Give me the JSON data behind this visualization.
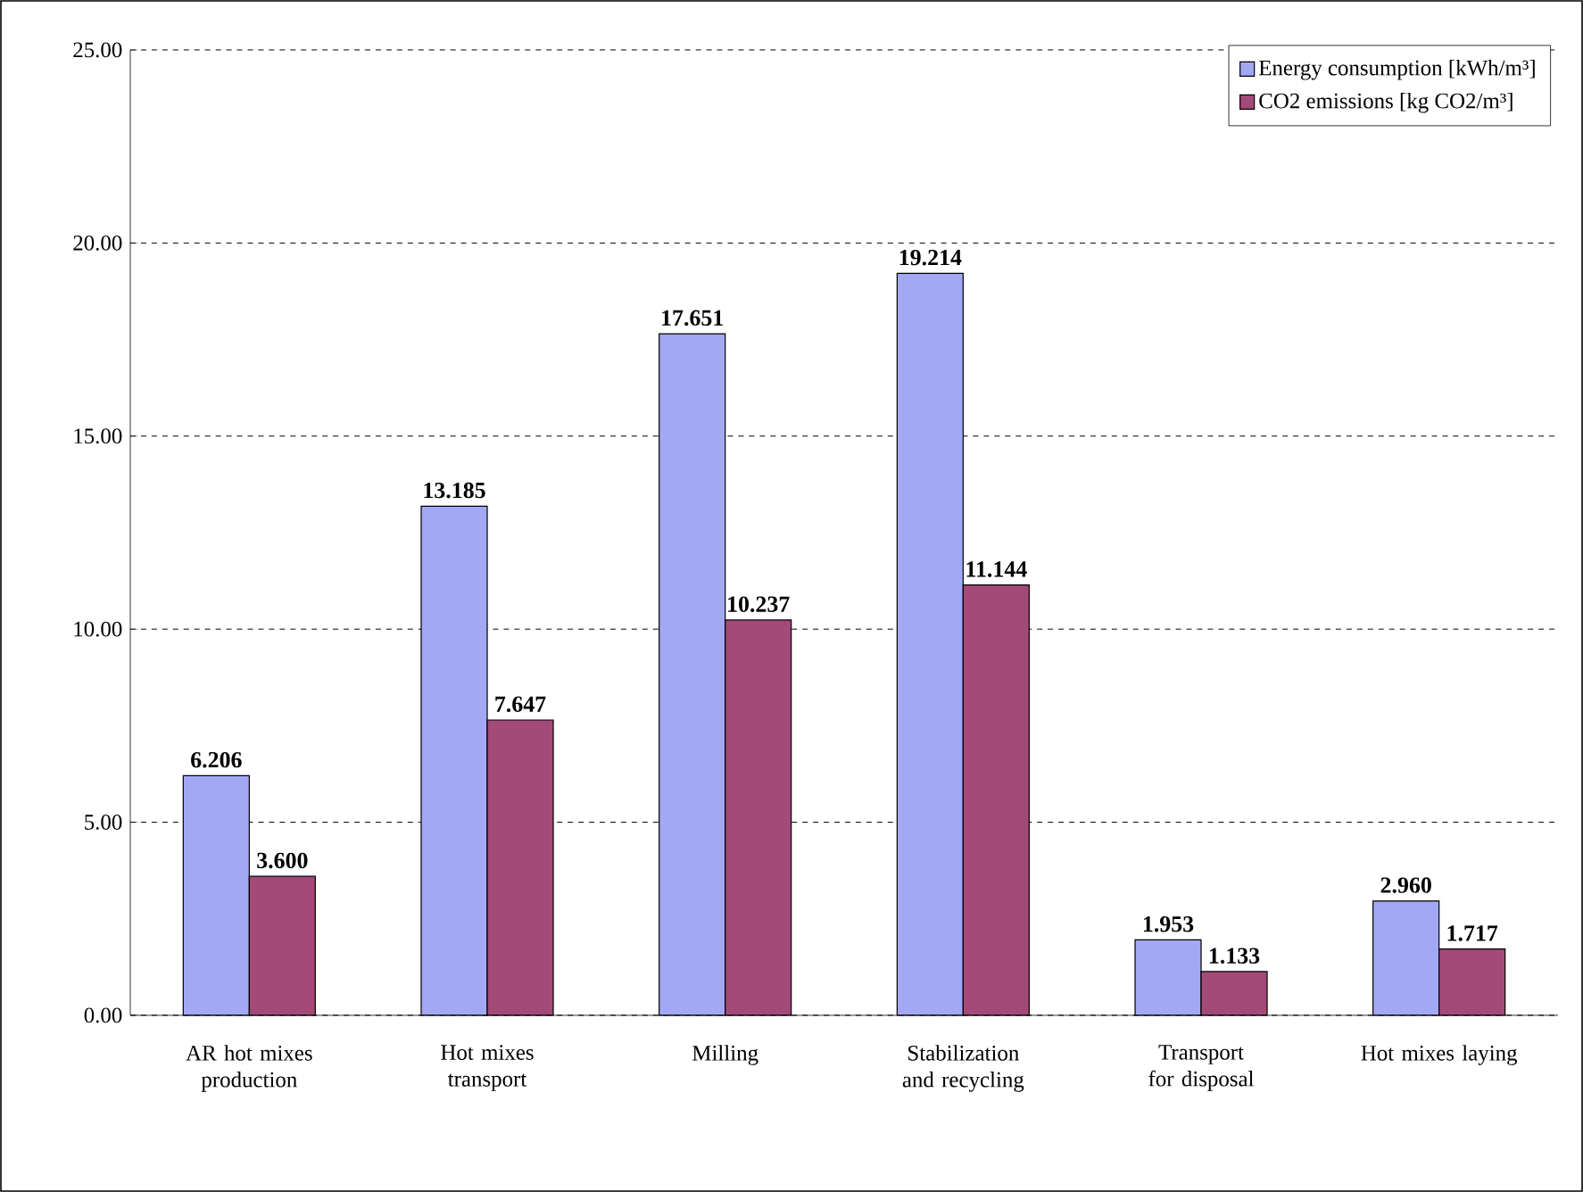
{
  "chart_data": {
    "type": "bar",
    "categories": [
      "AR hot mixes production",
      "Hot mixes transport",
      "Milling",
      "Stabilization and recycling",
      "Transport for disposal",
      "Hot mixes laying"
    ],
    "series": [
      {
        "name": "Energy consumption [kWh/m³]",
        "color": "#a3a8f5",
        "values": [
          6.206,
          13.185,
          17.651,
          19.214,
          1.953,
          2.96
        ]
      },
      {
        "name": "CO2 emissions  [kg CO2/m³]",
        "color": "#a34a78",
        "values": [
          3.6,
          7.647,
          10.237,
          11.144,
          1.133,
          1.717
        ]
      }
    ],
    "value_labels": [
      [
        "6.206",
        "13.185",
        "17.651",
        "19.214",
        "1.953",
        "2.960"
      ],
      [
        "3.600",
        "7.647",
        "10.237",
        "11.144",
        "1.133",
        "1.717"
      ]
    ],
    "ylim": [
      0,
      25
    ],
    "yticks": [
      {
        "value": 0,
        "label": "0.00"
      },
      {
        "value": 5,
        "label": "5.00"
      },
      {
        "value": 10,
        "label": "10.00"
      },
      {
        "value": 15,
        "label": "15.00"
      },
      {
        "value": 20,
        "label": "20.00"
      },
      {
        "value": 25,
        "label": "25.00"
      }
    ],
    "grid": "y",
    "legend": "top right"
  }
}
